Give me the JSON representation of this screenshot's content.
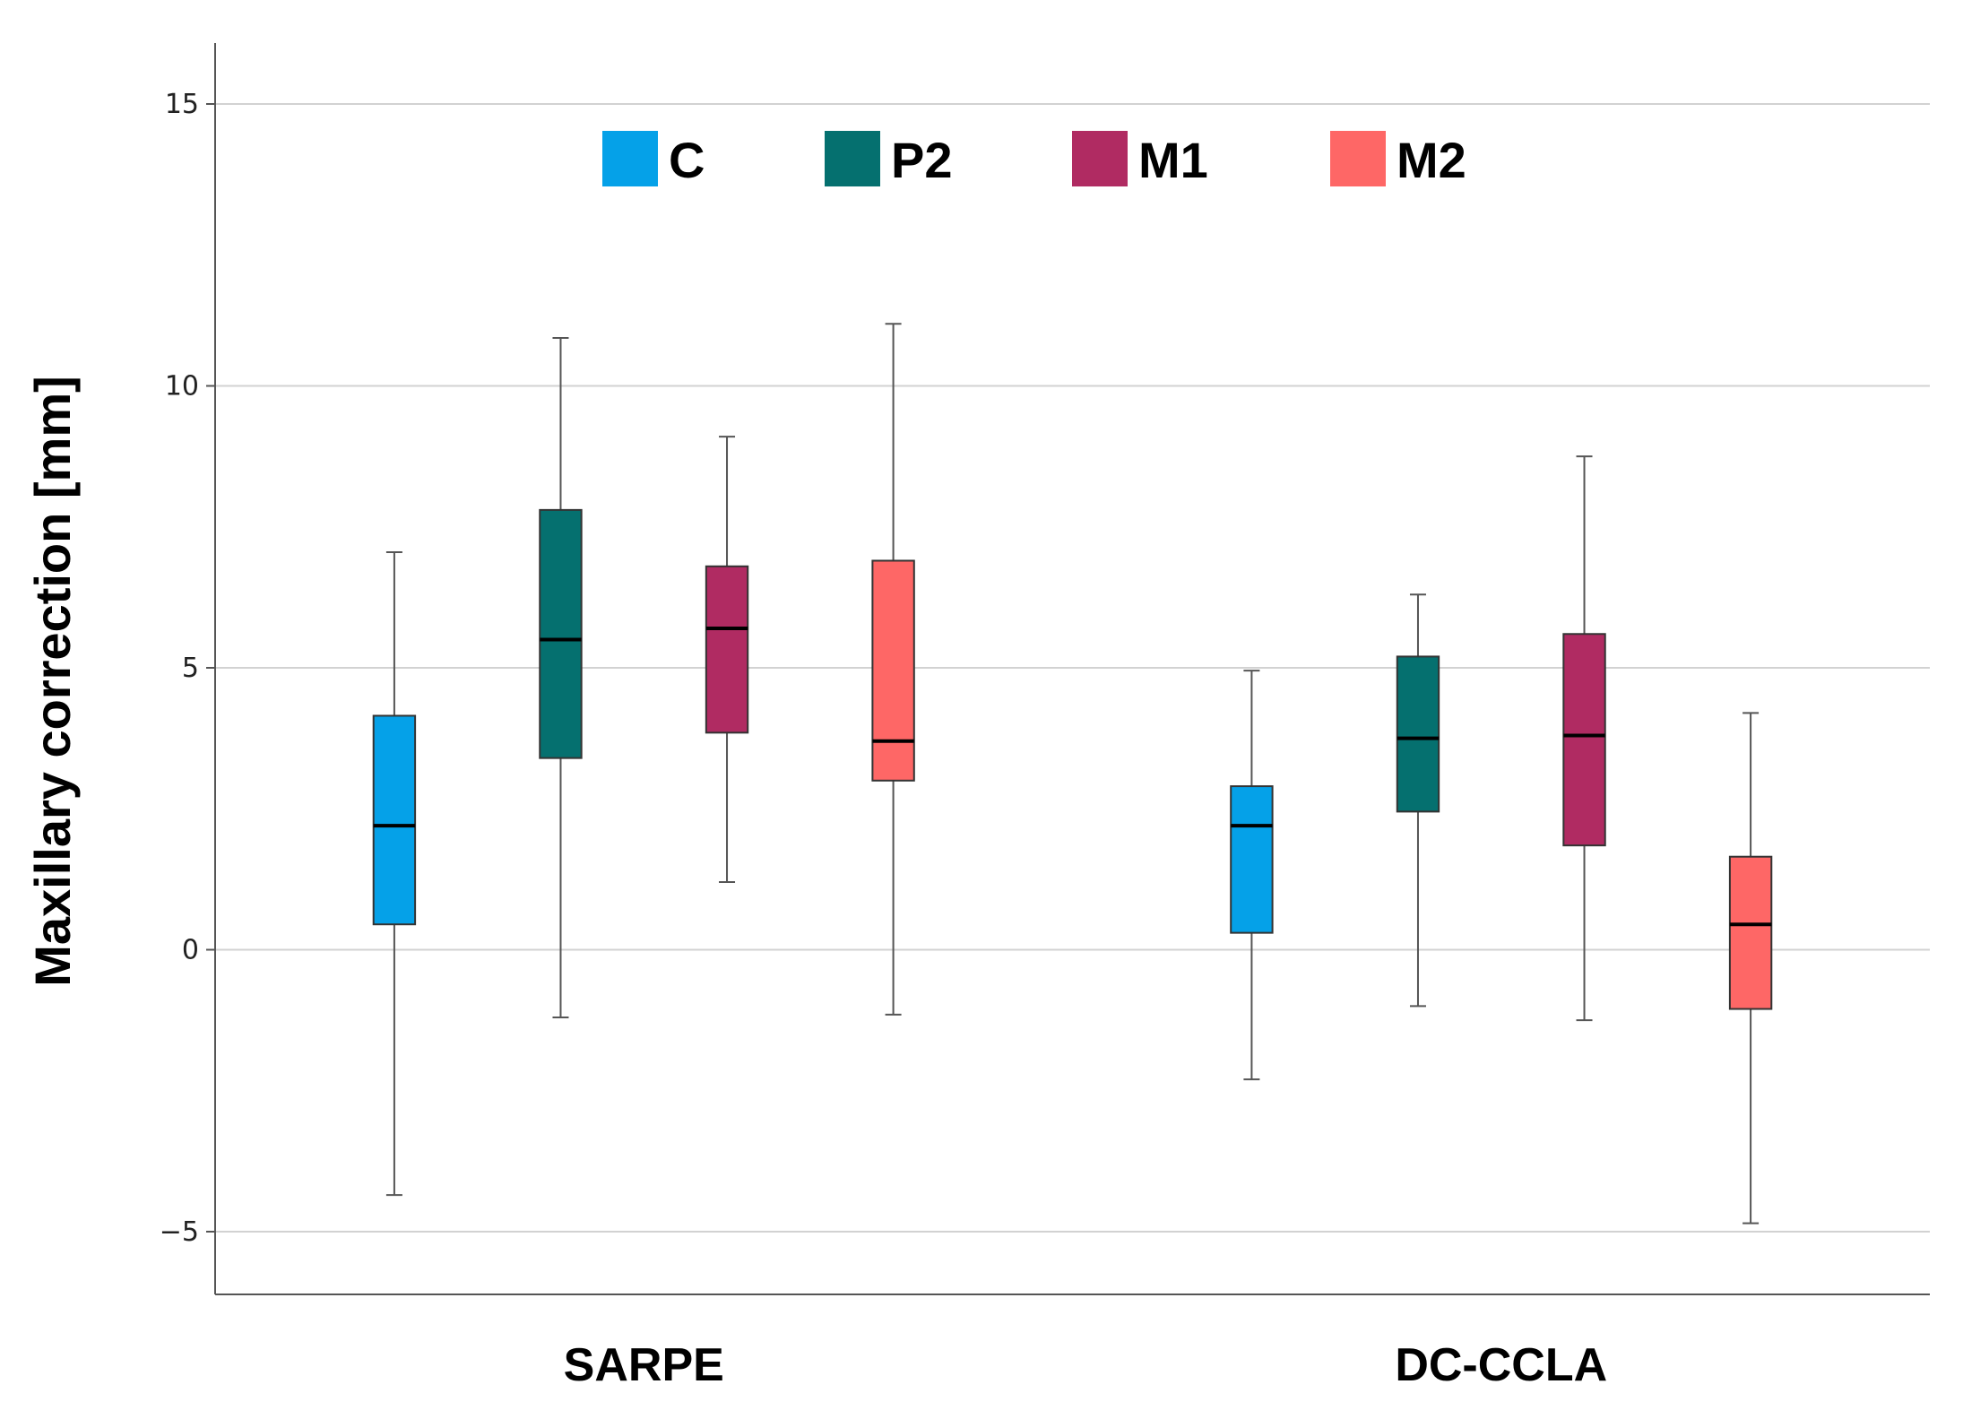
{
  "chart_data": {
    "type": "boxplot",
    "title": "",
    "xlabel": "",
    "ylabel": "Maxillary correction [mm]",
    "ylim": [
      -6.1,
      16.1
    ],
    "yticks": [
      -5,
      0,
      5,
      10,
      15
    ],
    "ytick_labels": [
      "−5",
      "0",
      "5",
      "10",
      "15"
    ],
    "grid": true,
    "legend_position": "top-center",
    "categories": [
      "SARPE",
      "DC-CCLA"
    ],
    "series": [
      {
        "name": "C",
        "color": "#05A1E8",
        "boxes": [
          {
            "category": "SARPE",
            "whisker_low": -4.35,
            "q1": 0.45,
            "median": 2.2,
            "q3": 4.15,
            "whisker_high": 7.05
          },
          {
            "category": "DC-CCLA",
            "whisker_low": -2.3,
            "q1": 0.3,
            "median": 2.2,
            "q3": 2.9,
            "whisker_high": 4.95
          }
        ]
      },
      {
        "name": "P2",
        "color": "#05706F",
        "boxes": [
          {
            "category": "SARPE",
            "whisker_low": -1.2,
            "q1": 3.4,
            "median": 5.5,
            "q3": 7.8,
            "whisker_high": 10.85
          },
          {
            "category": "DC-CCLA",
            "whisker_low": -1.0,
            "q1": 2.45,
            "median": 3.75,
            "q3": 5.2,
            "whisker_high": 6.3
          }
        ]
      },
      {
        "name": "M1",
        "color": "#B02B62",
        "boxes": [
          {
            "category": "SARPE",
            "whisker_low": 1.2,
            "q1": 3.85,
            "median": 5.7,
            "q3": 6.8,
            "whisker_high": 9.1
          },
          {
            "category": "DC-CCLA",
            "whisker_low": -1.25,
            "q1": 1.85,
            "median": 3.8,
            "q3": 5.6,
            "whisker_high": 8.75
          }
        ]
      },
      {
        "name": "M2",
        "color": "#FE6766",
        "boxes": [
          {
            "category": "SARPE",
            "whisker_low": -1.15,
            "q1": 3.0,
            "median": 3.7,
            "q3": 6.9,
            "whisker_high": 11.1
          },
          {
            "category": "DC-CCLA",
            "whisker_low": -4.85,
            "q1": -1.05,
            "median": 0.45,
            "q3": 1.65,
            "whisker_high": 4.2
          }
        ]
      }
    ]
  }
}
